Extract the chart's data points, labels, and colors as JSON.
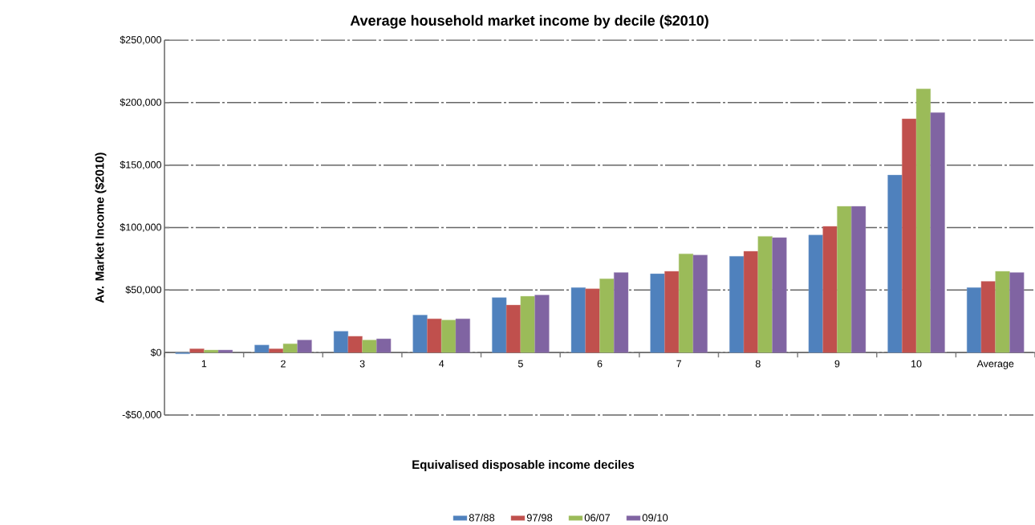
{
  "chart_data": {
    "type": "bar",
    "title": "Average household market income by decile ($2010)",
    "xlabel": "Equivalised disposable income deciles",
    "ylabel": "Av. Market Income ($2010)",
    "categories": [
      "1",
      "2",
      "3",
      "4",
      "5",
      "6",
      "7",
      "8",
      "9",
      "10",
      "Average"
    ],
    "series": [
      {
        "name": "87/88",
        "color": "#4f81bd",
        "values": [
          -1000,
          6000,
          17000,
          30000,
          44000,
          52000,
          63000,
          77000,
          94000,
          142000,
          52000
        ]
      },
      {
        "name": "97/98",
        "color": "#c0504d",
        "values": [
          3000,
          3000,
          13000,
          27000,
          38000,
          51000,
          65000,
          81000,
          101000,
          187000,
          57000
        ]
      },
      {
        "name": "06/07",
        "color": "#9bbb59",
        "values": [
          2000,
          7000,
          10000,
          26000,
          45000,
          59000,
          79000,
          93000,
          117000,
          211000,
          65000
        ]
      },
      {
        "name": "09/10",
        "color": "#8064a2",
        "values": [
          2000,
          10000,
          11000,
          27000,
          46000,
          64000,
          78000,
          92000,
          117000,
          192000,
          64000
        ]
      }
    ],
    "ylim": [
      -50000,
      250000
    ],
    "yticks": [
      {
        "value": -50000,
        "label": "-$50,000"
      },
      {
        "value": 0,
        "label": "$0"
      },
      {
        "value": 50000,
        "label": "$50,000"
      },
      {
        "value": 100000,
        "label": "$100,000"
      },
      {
        "value": 150000,
        "label": "$150,000"
      },
      {
        "value": 200000,
        "label": "$200,000"
      },
      {
        "value": 250000,
        "label": "$250,000"
      }
    ],
    "grid": "y",
    "legend": "bottom"
  }
}
